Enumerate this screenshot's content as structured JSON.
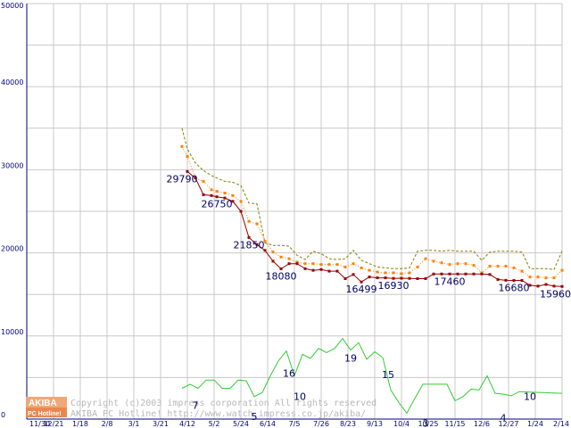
{
  "watermark": {
    "logo_line1": "AKIBA",
    "logo_line2": "PC Hotline!",
    "copyright": "Copyright (c)2003 impress corporation All rights reserved",
    "site": "AKIBA PC Hotline! http://www.watch.impress.co.jp/akiba/"
  },
  "chart_data": {
    "type": "line",
    "title": "",
    "xlabel": "",
    "ylabel": "",
    "ylim": [
      0,
      50000
    ],
    "yticks": [
      0,
      10000,
      20000,
      30000,
      40000,
      50000
    ],
    "ytick_labels": [
      "0",
      "10000",
      "20000",
      "30000",
      "40000",
      "50000"
    ],
    "grid": true,
    "x_tick_labels": [
      "11/30",
      "12/21",
      "1/18",
      "2/8",
      "3/1",
      "3/21",
      "4/12",
      "5/2",
      "5/24",
      "6/14",
      "7/5",
      "7/26",
      "8/23",
      "9/13",
      "10/4",
      "10/25",
      "11/15",
      "12/6",
      "12/27",
      "1/24",
      "2/14"
    ],
    "x_range": [
      0,
      20
    ],
    "colors": {
      "max": "#808000",
      "average": "#ff8000",
      "min": "#990000",
      "shops": "#33cc33",
      "labels": "#000066",
      "grid": "#c8c8c8",
      "axis": "#000080"
    },
    "series": [
      {
        "key": "max",
        "style": "dashed",
        "points": [
          [
            5.8,
            35000
          ],
          [
            6.0,
            32500
          ],
          [
            6.3,
            30800
          ],
          [
            6.6,
            29900
          ],
          [
            6.9,
            29300
          ],
          [
            7.1,
            29000
          ],
          [
            7.4,
            28600
          ],
          [
            7.7,
            28500
          ],
          [
            8.0,
            28100
          ],
          [
            8.3,
            26000
          ],
          [
            8.6,
            25900
          ],
          [
            8.9,
            21200
          ],
          [
            9.2,
            20900
          ],
          [
            9.5,
            20900
          ],
          [
            9.8,
            20800
          ],
          [
            10.1,
            19700
          ],
          [
            10.4,
            19200
          ],
          [
            10.7,
            20200
          ],
          [
            11.0,
            19900
          ],
          [
            11.3,
            19300
          ],
          [
            11.6,
            19200
          ],
          [
            11.9,
            19300
          ],
          [
            12.2,
            20300
          ],
          [
            12.5,
            19100
          ],
          [
            12.8,
            18700
          ],
          [
            13.1,
            18300
          ],
          [
            13.4,
            18200
          ],
          [
            13.7,
            18100
          ],
          [
            14.0,
            18100
          ],
          [
            14.3,
            18200
          ],
          [
            14.6,
            20200
          ],
          [
            14.9,
            20300
          ],
          [
            15.2,
            20300
          ],
          [
            15.5,
            20200
          ],
          [
            15.8,
            20300
          ],
          [
            16.1,
            20200
          ],
          [
            16.4,
            20200
          ],
          [
            16.7,
            20200
          ],
          [
            17.0,
            19100
          ],
          [
            17.3,
            20100
          ],
          [
            17.6,
            20200
          ],
          [
            17.9,
            20200
          ],
          [
            18.2,
            20200
          ],
          [
            18.5,
            20100
          ],
          [
            18.8,
            18100
          ],
          [
            19.1,
            18100
          ],
          [
            19.4,
            18100
          ],
          [
            19.7,
            18000
          ],
          [
            20.0,
            20200
          ]
        ]
      },
      {
        "key": "average",
        "style": "dotted-markers",
        "points": [
          [
            5.8,
            32800
          ],
          [
            6.0,
            31600
          ],
          [
            6.3,
            29000
          ],
          [
            6.6,
            28600
          ],
          [
            6.9,
            27600
          ],
          [
            7.1,
            27400
          ],
          [
            7.4,
            27200
          ],
          [
            7.7,
            26900
          ],
          [
            8.0,
            26200
          ],
          [
            8.3,
            23800
          ],
          [
            8.6,
            23500
          ],
          [
            8.9,
            21400
          ],
          [
            9.2,
            20100
          ],
          [
            9.5,
            19500
          ],
          [
            9.8,
            19300
          ],
          [
            10.1,
            18900
          ],
          [
            10.4,
            18700
          ],
          [
            10.7,
            18700
          ],
          [
            11.0,
            18600
          ],
          [
            11.3,
            18600
          ],
          [
            11.6,
            18600
          ],
          [
            11.9,
            18300
          ],
          [
            12.2,
            18700
          ],
          [
            12.5,
            18200
          ],
          [
            12.8,
            17900
          ],
          [
            13.1,
            17700
          ],
          [
            13.4,
            17600
          ],
          [
            13.7,
            17600
          ],
          [
            14.0,
            17500
          ],
          [
            14.3,
            17600
          ],
          [
            14.6,
            18300
          ],
          [
            14.9,
            19300
          ],
          [
            15.2,
            19000
          ],
          [
            15.5,
            18800
          ],
          [
            15.8,
            18600
          ],
          [
            16.1,
            18700
          ],
          [
            16.4,
            18700
          ],
          [
            16.7,
            18500
          ],
          [
            17.0,
            17600
          ],
          [
            17.3,
            18400
          ],
          [
            17.6,
            18400
          ],
          [
            17.9,
            18400
          ],
          [
            18.2,
            18200
          ],
          [
            18.5,
            17800
          ],
          [
            18.8,
            17100
          ],
          [
            19.1,
            17100
          ],
          [
            19.4,
            17000
          ],
          [
            19.7,
            17000
          ],
          [
            20.0,
            17900
          ]
        ]
      },
      {
        "key": "min",
        "style": "solid-markers",
        "points": [
          [
            6.0,
            29790
          ],
          [
            6.3,
            29000
          ],
          [
            6.6,
            27000
          ],
          [
            6.9,
            26900
          ],
          [
            7.1,
            26750
          ],
          [
            7.4,
            26600
          ],
          [
            7.7,
            26200
          ],
          [
            8.0,
            25000
          ],
          [
            8.3,
            21850
          ],
          [
            8.6,
            21000
          ],
          [
            8.9,
            20300
          ],
          [
            9.2,
            19000
          ],
          [
            9.5,
            18080
          ],
          [
            9.8,
            18700
          ],
          [
            10.1,
            18700
          ],
          [
            10.4,
            18100
          ],
          [
            10.7,
            17900
          ],
          [
            11.0,
            18000
          ],
          [
            11.3,
            17800
          ],
          [
            11.6,
            17800
          ],
          [
            11.9,
            16900
          ],
          [
            12.2,
            17400
          ],
          [
            12.5,
            16499
          ],
          [
            12.8,
            17100
          ],
          [
            13.1,
            17000
          ],
          [
            13.4,
            17000
          ],
          [
            13.7,
            16930
          ],
          [
            14.0,
            16950
          ],
          [
            14.3,
            16930
          ],
          [
            14.6,
            16900
          ],
          [
            14.9,
            16900
          ],
          [
            15.2,
            17460
          ],
          [
            15.5,
            17460
          ],
          [
            15.8,
            17460
          ],
          [
            16.1,
            17460
          ],
          [
            16.4,
            17460
          ],
          [
            16.7,
            17460
          ],
          [
            17.0,
            17460
          ],
          [
            17.3,
            17400
          ],
          [
            17.6,
            16800
          ],
          [
            17.9,
            16700
          ],
          [
            18.2,
            16680
          ],
          [
            18.5,
            16680
          ],
          [
            18.8,
            16100
          ],
          [
            19.1,
            16000
          ],
          [
            19.4,
            16200
          ],
          [
            19.7,
            16000
          ],
          [
            20.0,
            15960
          ]
        ]
      },
      {
        "key": "shops",
        "style": "solid",
        "points": [
          [
            5.8,
            3700
          ],
          [
            6.1,
            4200
          ],
          [
            6.4,
            3700
          ],
          [
            6.7,
            4700
          ],
          [
            7.0,
            4700
          ],
          [
            7.3,
            3700
          ],
          [
            7.6,
            3700
          ],
          [
            7.9,
            4700
          ],
          [
            8.2,
            4600
          ],
          [
            8.5,
            2700
          ],
          [
            8.8,
            3200
          ],
          [
            9.1,
            5200
          ],
          [
            9.4,
            7000
          ],
          [
            9.7,
            8200
          ],
          [
            10.0,
            5200
          ],
          [
            10.3,
            7800
          ],
          [
            10.6,
            7300
          ],
          [
            10.9,
            8500
          ],
          [
            11.2,
            8000
          ],
          [
            11.5,
            8500
          ],
          [
            11.8,
            9700
          ],
          [
            12.1,
            8300
          ],
          [
            12.4,
            9200
          ],
          [
            12.7,
            7200
          ],
          [
            13.0,
            8100
          ],
          [
            13.3,
            7400
          ],
          [
            13.6,
            3500
          ],
          [
            13.9,
            2000
          ],
          [
            14.2,
            700
          ],
          [
            14.5,
            2500
          ],
          [
            14.8,
            4200
          ],
          [
            15.1,
            4200
          ],
          [
            15.4,
            4200
          ],
          [
            15.7,
            4200
          ],
          [
            16.0,
            2200
          ],
          [
            16.3,
            2700
          ],
          [
            16.6,
            3600
          ],
          [
            16.9,
            3500
          ],
          [
            17.2,
            5200
          ],
          [
            17.5,
            3100
          ],
          [
            17.8,
            3000
          ],
          [
            18.1,
            2800
          ],
          [
            18.4,
            3300
          ],
          [
            20.0,
            3100
          ]
        ]
      }
    ],
    "data_labels": [
      {
        "x": 5.8,
        "y": 29790,
        "text": "29790"
      },
      {
        "x": 7.1,
        "y": 26750,
        "text": "26750"
      },
      {
        "x": 8.3,
        "y": 21850,
        "text": "21850"
      },
      {
        "x": 9.5,
        "y": 18080,
        "text": "18080"
      },
      {
        "x": 12.5,
        "y": 16499,
        "text": "16499"
      },
      {
        "x": 13.7,
        "y": 16930,
        "text": "16930"
      },
      {
        "x": 15.8,
        "y": 17460,
        "text": "17460"
      },
      {
        "x": 18.2,
        "y": 16680,
        "text": "16680"
      },
      {
        "x": 19.9,
        "y": 15960,
        "text": "15960"
      },
      {
        "x": 6.3,
        "y": 2500,
        "text": "7"
      },
      {
        "x": 8.5,
        "y": 1200,
        "text": "5"
      },
      {
        "x": 9.8,
        "y": 6400,
        "text": "16"
      },
      {
        "x": 10.2,
        "y": 3600,
        "text": "10"
      },
      {
        "x": 12.1,
        "y": 8200,
        "text": "19"
      },
      {
        "x": 13.5,
        "y": 6200,
        "text": "15"
      },
      {
        "x": 14.9,
        "y": 400,
        "text": "3"
      },
      {
        "x": 17.8,
        "y": 1000,
        "text": "4"
      },
      {
        "x": 18.8,
        "y": 3600,
        "text": "10"
      }
    ]
  }
}
